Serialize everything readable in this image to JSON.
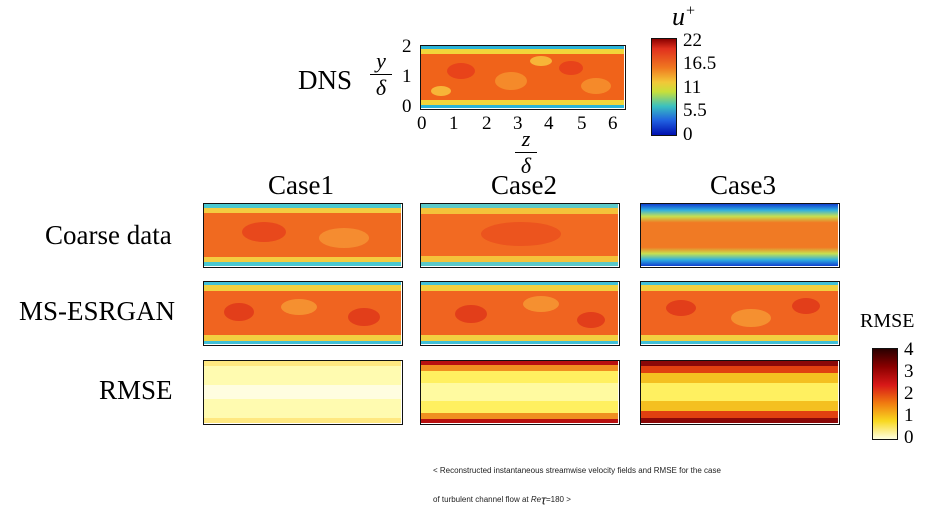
{
  "figure": {
    "dns_label": "DNS",
    "y_axis": {
      "num": "y",
      "den": "δ",
      "ticks": [
        "2",
        "1",
        "0"
      ]
    },
    "z_axis": {
      "num": "z",
      "den": "δ",
      "ticks": [
        "0",
        "1",
        "2",
        "3",
        "4",
        "5",
        "6"
      ]
    },
    "u_colorbar": {
      "title_main": "u",
      "title_sup": "+",
      "ticks": [
        "22",
        "16.5",
        "11",
        "5.5",
        "0"
      ]
    },
    "rmse_colorbar": {
      "title": "RMSE",
      "ticks": [
        "4",
        "3",
        "2",
        "1",
        "0"
      ]
    },
    "columns": [
      "Case1",
      "Case2",
      "Case3"
    ],
    "rows": [
      "Coarse data",
      "MS-ESRGAN",
      "RMSE"
    ]
  },
  "caption": {
    "line1": "< Reconstructed instantaneous streamwise velocity fields and RMSE for the case",
    "line2_prefix": "of turbulent channel flow at ",
    "re_main": "Re",
    "re_sub": "τ",
    "line2_suffix": "=180 >"
  }
}
